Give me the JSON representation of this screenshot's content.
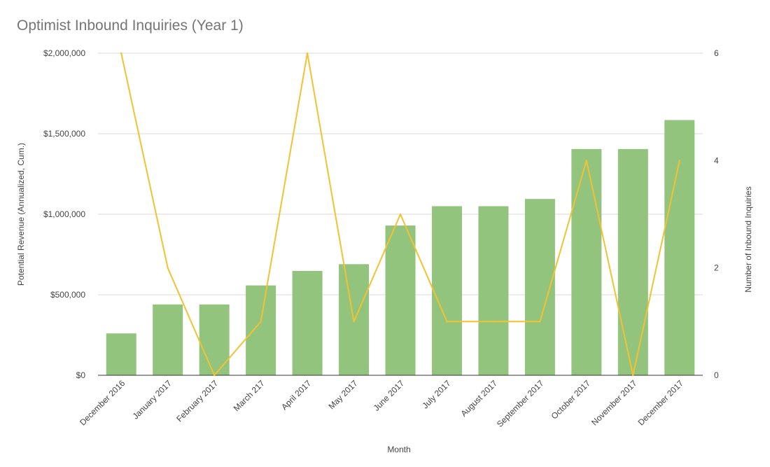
{
  "chart_data": {
    "type": "bar",
    "title": "Optimist Inbound Inquiries (Year 1)",
    "xlabel": "Month",
    "ylabel": "Potential Revenue (Annualized, Cum.)",
    "y2label": "Number of Inbound Inquiries",
    "categories": [
      "December 2016",
      "January 2017",
      "February 2017",
      "March 217",
      "April 2017",
      "May 2017",
      "June 2017",
      "July 2017",
      "August 2017",
      "September 2017",
      "October 2017",
      "November 2017",
      "December 2017"
    ],
    "series": [
      {
        "type": "bar",
        "axis": "left",
        "color": "#93c47d",
        "values": [
          260000,
          440000,
          440000,
          558000,
          648000,
          690000,
          930000,
          1050000,
          1050000,
          1095000,
          1405000,
          1405000,
          1585000
        ]
      },
      {
        "type": "line",
        "axis": "right",
        "color": "#f1c232",
        "values": [
          6,
          2,
          0,
          1,
          6,
          1,
          3,
          1,
          1,
          1,
          4,
          0,
          4
        ]
      }
    ],
    "ylim": [
      0,
      2000000
    ],
    "y2lim": [
      0,
      6
    ],
    "yticks": [
      "$0",
      "$500,000",
      "$1,000,000",
      "$1,500,000",
      "$2,000,000"
    ],
    "y2ticks": [
      "0",
      "2",
      "4",
      "6"
    ],
    "grid": true
  }
}
